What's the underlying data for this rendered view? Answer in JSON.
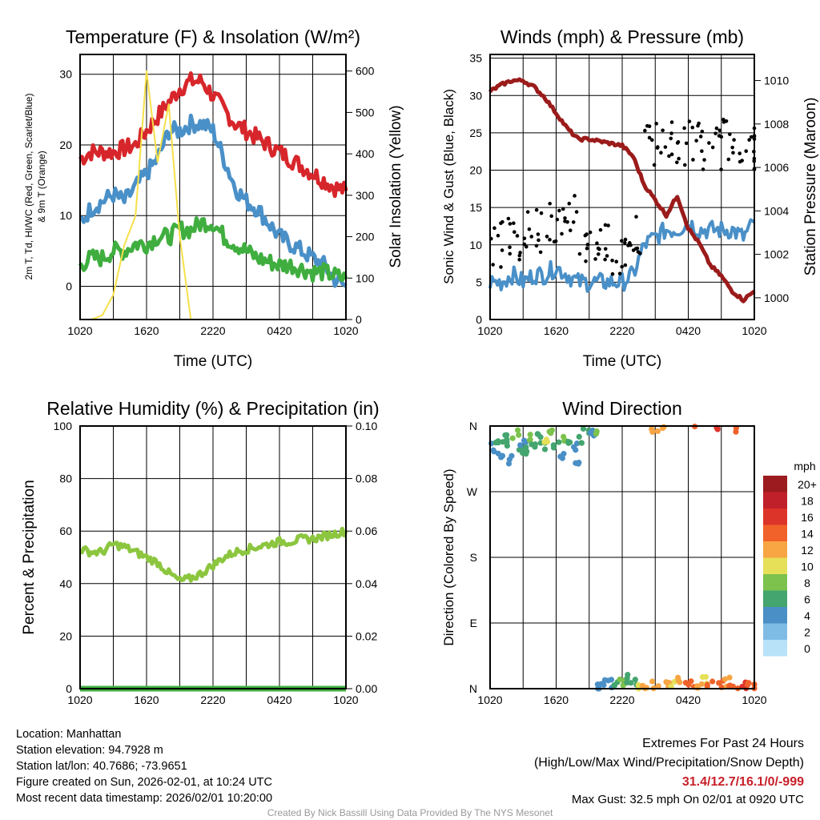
{
  "chart_data": [
    {
      "type": "line",
      "title": "Temperature (F) & Insolation (W/m²)",
      "xlabel": "Time (UTC)",
      "ylabel": "2m T, Td, HI/WC (Red, Green, Scarlet/Blue) & 9m T (Orange)",
      "ylabel_right": "Solar Insolation (Yellow)",
      "ylim": [
        -4.7,
        32.8
      ],
      "ylim_right": [
        0,
        640
      ],
      "yticks": [
        0,
        10,
        20,
        30
      ],
      "yticks_right": [
        0,
        100,
        200,
        300,
        400,
        500,
        600
      ],
      "xticklabels": [
        "1020",
        "1620",
        "2220",
        "0420",
        "1020"
      ],
      "x_hours": [
        0,
        1,
        2,
        3,
        4,
        5,
        6,
        7,
        8,
        9,
        10,
        11,
        12,
        13,
        14,
        15,
        16,
        17,
        18,
        19,
        20,
        21,
        22,
        23,
        24
      ],
      "series": [
        {
          "name": "2m T",
          "color": "#d7262b",
          "axis": "left",
          "values": [
            18,
            19,
            19,
            19,
            19.5,
            20,
            22,
            24,
            26,
            28,
            29,
            29,
            27,
            25,
            23,
            22,
            21,
            20,
            19,
            18,
            17,
            16,
            15,
            14,
            13.5
          ]
        },
        {
          "name": "HI/WC",
          "color": "#4a90c8",
          "axis": "left",
          "values": [
            9,
            11,
            12,
            13,
            12,
            14,
            16,
            18,
            22,
            22,
            23,
            23,
            22,
            18,
            14,
            12,
            11,
            9,
            7,
            6,
            5,
            4,
            3,
            1,
            0
          ]
        },
        {
          "name": "Td",
          "color": "#3fae3f",
          "axis": "left",
          "values": [
            3,
            4,
            4,
            5,
            5,
            6,
            6,
            7,
            7,
            8,
            8,
            9,
            9,
            7,
            6,
            5,
            4,
            3.5,
            3,
            3,
            2.5,
            2,
            2,
            1.5,
            1
          ]
        },
        {
          "name": "Solar",
          "color": "#f6e04a",
          "axis": "right",
          "values": [
            0,
            0,
            10,
            60,
            180,
            250,
            600,
            380,
            520,
            200,
            0,
            0,
            0,
            0,
            0,
            0,
            0,
            0,
            0,
            0,
            0,
            0,
            0,
            0,
            0
          ]
        }
      ]
    },
    {
      "type": "line",
      "title": "Winds (mph) & Pressure (mb)",
      "xlabel": "Time (UTC)",
      "ylabel": "Sonic Wind & Gust (Blue, Black)",
      "ylabel_right": "Station Pressure (Maroon)",
      "ylim": [
        0,
        35.5
      ],
      "ylim_right": [
        999.0,
        1011.2
      ],
      "yticks": [
        0,
        5,
        10,
        15,
        20,
        25,
        30,
        35
      ],
      "yticks_right": [
        1000,
        1002,
        1004,
        1006,
        1008,
        1010
      ],
      "xticklabels": [
        "1020",
        "1620",
        "2220",
        "0420",
        "1020"
      ],
      "series": [
        {
          "name": "Sonic Wind",
          "color": "#4a90c8",
          "axis": "left",
          "values": [
            5,
            5,
            6,
            5,
            6,
            6,
            7,
            6,
            5,
            5,
            5,
            5,
            5,
            6,
            10,
            11,
            12,
            12,
            13,
            12,
            12,
            12,
            12,
            11,
            13
          ]
        },
        {
          "name": "Gust",
          "color": "#000000",
          "axis": "left",
          "type": "scatter",
          "values": [
            10,
            11,
            11,
            12,
            12,
            13,
            12,
            14,
            10,
            10,
            10,
            9,
            10,
            11,
            23,
            24,
            24,
            23,
            24,
            23,
            23,
            24,
            24,
            22,
            23
          ]
        },
        {
          "name": "Station Pressure",
          "color": "#9b1b1b",
          "axis": "right",
          "values": [
            1009.5,
            1009.8,
            1010.0,
            1010.0,
            1009.7,
            1009.2,
            1008.5,
            1007.8,
            1007.3,
            1007.3,
            1007.2,
            1007.1,
            1007.0,
            1006.5,
            1005.2,
            1004.5,
            1003.8,
            1004.7,
            1003.2,
            1002.5,
            1001.5,
            1001.0,
            1000.3,
            999.9,
            1000.3
          ]
        }
      ]
    },
    {
      "type": "line",
      "title": "Relative Humidity (%) & Precipitation (in)",
      "ylabel": "Percent & Precipitation",
      "ylim": [
        0,
        100
      ],
      "ylim_right": [
        0,
        0.1
      ],
      "yticks": [
        0,
        20,
        40,
        60,
        80,
        100
      ],
      "yticks_right": [
        "0.00",
        "0.02",
        "0.04",
        "0.06",
        "0.08",
        "0.10"
      ],
      "xticklabels": [
        "1020",
        "1620",
        "2220",
        "0420",
        "1020"
      ],
      "series": [
        {
          "name": "RH",
          "color": "#8cc63f",
          "values": [
            53,
            52,
            52,
            55,
            54,
            52,
            50,
            48,
            44,
            41,
            42,
            44,
            47,
            50,
            52,
            53,
            54,
            55,
            56,
            56,
            57,
            57,
            58,
            59,
            60
          ]
        },
        {
          "name": "Precipitation",
          "color": "#3fae3f",
          "values": [
            0,
            0,
            0,
            0,
            0,
            0,
            0,
            0,
            0,
            0,
            0,
            0,
            0,
            0,
            0,
            0,
            0,
            0,
            0,
            0,
            0,
            0,
            0,
            0,
            0
          ]
        }
      ]
    },
    {
      "type": "scatter",
      "title": "Wind Direction",
      "ylabel": "Direction (Colored By Speed)",
      "yticklabels": [
        "N",
        "W",
        "S",
        "E",
        "N"
      ],
      "ylim": [
        0,
        360
      ],
      "xticklabels": [
        "1020",
        "1620",
        "2220",
        "0420",
        "1020"
      ],
      "legend": {
        "title": "mph",
        "labels": [
          "20+",
          "18",
          "16",
          "14",
          "12",
          "10",
          "8",
          "6",
          "4",
          "2",
          "0"
        ],
        "colors": [
          "#9b1b1e",
          "#c0202a",
          "#dd3429",
          "#f06229",
          "#f8a543",
          "#e6e058",
          "#7cc24c",
          "#44a56e",
          "#4a8fc6",
          "#7fbce5",
          "#b8e2f8"
        ]
      },
      "points": [
        [
          0.3,
          330,
          5
        ],
        [
          0.6,
          340,
          6
        ],
        [
          1,
          320,
          4
        ],
        [
          1.3,
          345,
          7
        ],
        [
          1.6,
          335,
          6
        ],
        [
          2,
          315,
          5
        ],
        [
          2.3,
          350,
          8
        ],
        [
          2.7,
          330,
          6
        ],
        [
          3,
          340,
          5
        ],
        [
          3.4,
          325,
          7
        ],
        [
          3.7,
          345,
          9
        ],
        [
          4,
          335,
          6
        ],
        [
          4.4,
          350,
          7
        ],
        [
          4.8,
          330,
          6
        ],
        [
          5.2,
          340,
          10
        ],
        [
          5.6,
          350,
          8
        ],
        [
          6,
          335,
          7
        ],
        [
          6.4,
          320,
          5
        ],
        [
          6.8,
          345,
          9
        ],
        [
          7.2,
          340,
          6
        ],
        [
          7.6,
          330,
          4
        ],
        [
          8,
          310,
          4
        ],
        [
          8.3,
          340,
          7
        ],
        [
          8.7,
          355,
          6
        ],
        [
          9.2,
          350,
          5
        ],
        [
          9.6,
          355,
          8
        ],
        [
          10,
          0,
          4
        ],
        [
          10.3,
          5,
          4
        ],
        [
          11,
          8,
          5
        ],
        [
          11.5,
          3,
          6
        ],
        [
          12,
          10,
          8
        ],
        [
          12.5,
          15,
          6
        ],
        [
          13,
          12,
          7
        ],
        [
          13.5,
          5,
          11
        ],
        [
          14,
          4,
          12
        ],
        [
          14.5,
          358,
          12
        ],
        [
          15,
          6,
          13
        ],
        [
          15.5,
          359,
          12
        ],
        [
          16,
          8,
          12
        ],
        [
          16.5,
          3,
          11
        ],
        [
          17,
          10,
          13
        ],
        [
          18,
          5,
          14
        ],
        [
          18.5,
          359,
          14
        ],
        [
          19,
          8,
          12
        ],
        [
          19.5,
          12,
          10
        ],
        [
          20,
          6,
          14
        ],
        [
          20.5,
          359,
          16
        ],
        [
          21,
          4,
          15
        ],
        [
          21.5,
          9,
          13
        ],
        [
          22,
          3,
          14
        ],
        [
          22.5,
          358,
          15
        ],
        [
          23,
          7,
          16
        ],
        [
          23.5,
          4,
          14
        ],
        [
          24,
          6,
          15
        ]
      ]
    }
  ],
  "info": {
    "location": "Location: Manhattan",
    "elevation": "Station elevation: 94.7928 m",
    "latlon": "Station lat/lon: 40.7686; -73.9651",
    "created": "Figure created on Sun, 2026-02-01, at 10:24 UTC",
    "recent": "Most recent data timestamp: 2026/02/01 10:20:00"
  },
  "extremes": {
    "title": "Extremes For Past 24 Hours",
    "subtitle": "(High/Low/Max Wind/Precipitation/Snow Depth)",
    "values": "31.4/12.7/16.1/0/-999",
    "gust": "Max Gust: 32.5 mph On 02/01 at 0920 UTC"
  },
  "credit": "Created By Nick Bassill Using Data Provided By The NYS Mesonet"
}
